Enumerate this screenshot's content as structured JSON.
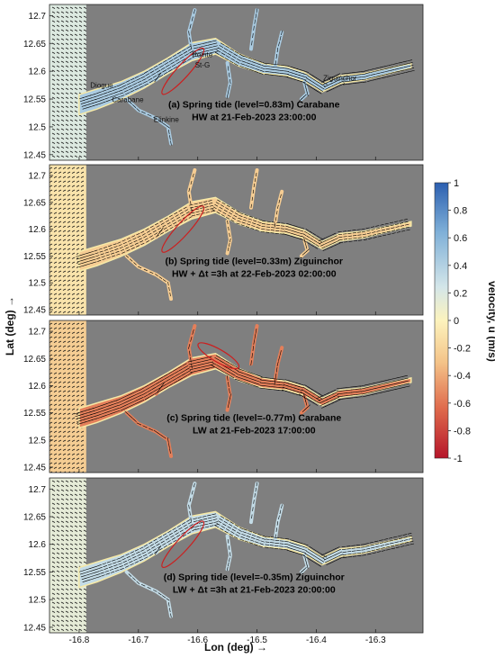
{
  "chart_data": {
    "type": "vector-field",
    "x_axis": {
      "label": "Lon (deg) →",
      "ticks": [
        -16.8,
        -16.7,
        -16.6,
        -16.5,
        -16.4,
        -16.3
      ],
      "range": [
        -16.85,
        -16.22
      ]
    },
    "y_axis": {
      "label": "Lat (deg) →",
      "ticks": [
        12.45,
        12.5,
        12.55,
        12.6,
        12.65,
        12.7
      ],
      "range": [
        12.44,
        12.72
      ]
    },
    "colorbar": {
      "label": "velocity, u  (m/s)",
      "range": [
        -1,
        1
      ],
      "ticks": [
        1,
        0.8,
        0.6,
        0.4,
        0.2,
        0,
        -0.2,
        -0.4,
        -0.6,
        -0.8,
        -1
      ],
      "colors": {
        "high": "#2c5fb0",
        "mid": "#fcf3bd",
        "low": "#b5152a"
      }
    },
    "place_names": [
      {
        "name": "Diogue",
        "lon": -16.762,
        "lat": 12.57
      },
      {
        "name": "Carabane",
        "lon": -16.718,
        "lat": 12.544
      },
      {
        "name": "Pointe",
        "lon": -16.592,
        "lat": 12.625
      },
      {
        "name": "St-G",
        "lon": -16.592,
        "lat": 12.607
      },
      {
        "name": "Elinkine",
        "lon": -16.653,
        "lat": 12.509
      },
      {
        "name": "Ziguinchor",
        "lon": -16.36,
        "lat": 12.583
      }
    ],
    "panels": [
      {
        "id": "a",
        "line1": "(a) Spring tide (level=0.83m) Carabane",
        "line2": "HW at 21-Feb-2023 23:00:00",
        "mean_velocity": 0.55,
        "flow": "flood"
      },
      {
        "id": "b",
        "line1": "(b) Spring tide (level=0.33m) Ziguinchor",
        "line2": "HW + Δt =3h  at  22-Feb-2023 02:00:00",
        "mean_velocity": -0.3,
        "flow": "ebb"
      },
      {
        "id": "c",
        "line1": "(c) Spring tide (level=-0.77m) Carabane",
        "line2": "LW at 21-Feb-2023 17:00:00",
        "mean_velocity": -0.7,
        "flow": "ebb"
      },
      {
        "id": "d",
        "line1": "(d) Spring tide (level=-0.35m) Ziguinchor",
        "line2": "LW + Δt =3h  at  21-Feb-2023 20:00:00",
        "mean_velocity": 0.4,
        "flow": "flood"
      }
    ]
  }
}
